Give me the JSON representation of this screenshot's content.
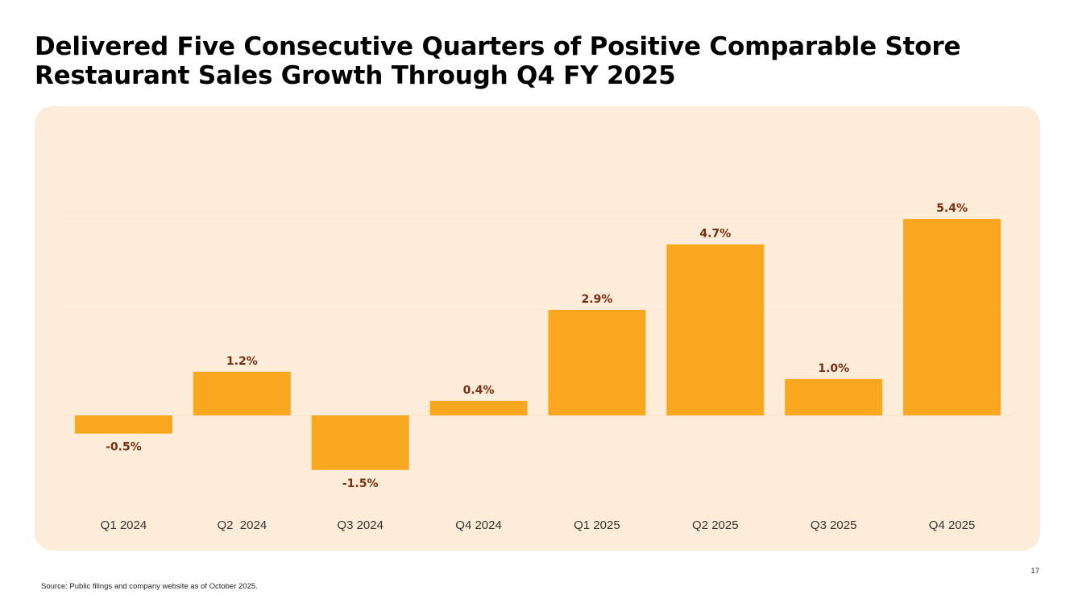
{
  "slide": {
    "title_line1": "Delivered Five Consecutive Quarters of Positive Comparable Store",
    "title_line2": "Restaurant Sales Growth Through Q4 FY 2025",
    "source": "Source: Public filings and company website as of October 2025.",
    "page_number": "17"
  },
  "colors": {
    "bar": "#f9a71f",
    "label": "#7a2e12",
    "tick": "#333333",
    "panel": "#fdecd7",
    "grid": "#fbf3e6"
  },
  "chart_data": {
    "type": "bar",
    "title": "",
    "xlabel": "",
    "ylabel": "",
    "categories": [
      "Q1 2024",
      "Q2  2024",
      "Q3 2024",
      "Q4 2024",
      "Q1 2025",
      "Q2 2025",
      "Q3 2025",
      "Q4 2025"
    ],
    "values": [
      -0.5,
      1.2,
      -1.5,
      0.4,
      2.9,
      4.7,
      1.0,
      5.4
    ],
    "data_labels": [
      "-0.5%",
      "1.2%",
      "-1.5%",
      "0.4%",
      "2.9%",
      "4.7%",
      "1.0%",
      "5.4%"
    ],
    "ylim": [
      -2,
      6
    ],
    "grid": true,
    "legend": "none"
  }
}
